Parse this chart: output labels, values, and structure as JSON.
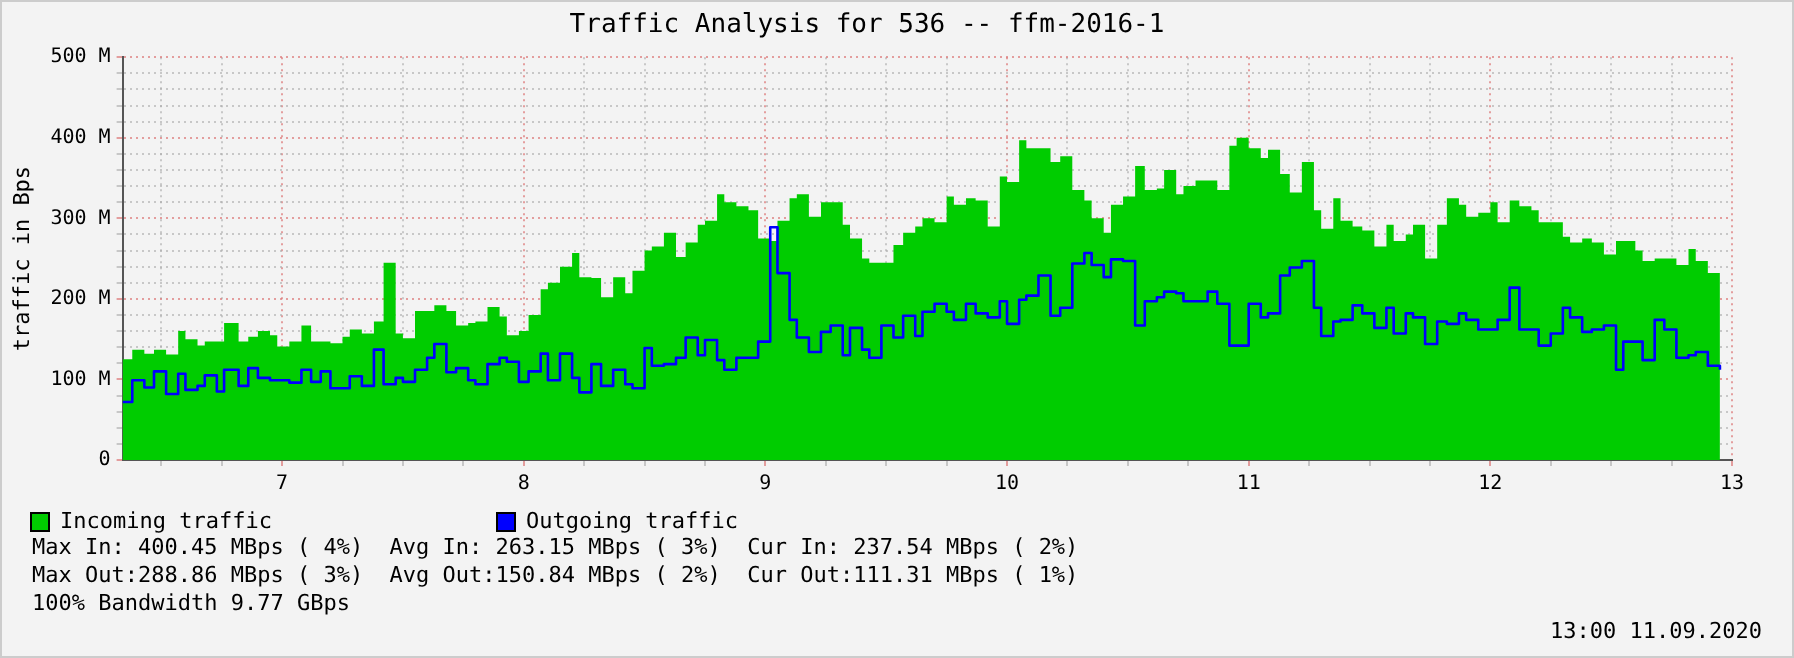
{
  "chart_data": {
    "type": "step",
    "title": "Traffic Analysis for 536 -- ffm-2016-1",
    "ylabel": "traffic in Bps",
    "grid": true,
    "legend": "bottom",
    "xlim": [
      6.34,
      13
    ],
    "xticks": [
      {
        "value": 6.5,
        "label": null
      },
      {
        "value": 6.75,
        "label": null
      },
      7,
      {
        "value": 7.25,
        "label": null
      },
      {
        "value": 7.5,
        "label": null
      },
      {
        "value": 7.75,
        "label": null
      },
      8,
      {
        "value": 8.25,
        "label": null
      },
      {
        "value": 8.5,
        "label": null
      },
      {
        "value": 8.75,
        "label": null
      },
      9,
      {
        "value": 9.25,
        "label": null
      },
      {
        "value": 9.5,
        "label": null
      },
      {
        "value": 9.75,
        "label": null
      },
      10,
      {
        "value": 10.25,
        "label": null
      },
      {
        "value": 10.5,
        "label": null
      },
      {
        "value": 10.75,
        "label": null
      },
      11,
      {
        "value": 11.25,
        "label": null
      },
      {
        "value": 11.5,
        "label": null
      },
      {
        "value": 11.75,
        "label": null
      },
      12,
      {
        "value": 12.25,
        "label": null
      },
      {
        "value": 12.5,
        "label": null
      },
      {
        "value": 12.75,
        "label": null
      },
      13
    ],
    "ylim": [
      0,
      500
    ],
    "yticks": [
      0,
      {
        "value": 20,
        "label": null
      },
      {
        "value": 40,
        "label": null
      },
      {
        "value": 60,
        "label": null
      },
      {
        "value": 80,
        "label": null
      },
      {
        "value": 100,
        "label": "100 M"
      },
      {
        "value": 120,
        "label": null
      },
      {
        "value": 140,
        "label": null
      },
      {
        "value": 160,
        "label": null
      },
      {
        "value": 180,
        "label": null
      },
      {
        "value": 200,
        "label": "200 M"
      },
      {
        "value": 220,
        "label": null
      },
      {
        "value": 240,
        "label": null
      },
      {
        "value": 260,
        "label": null
      },
      {
        "value": 280,
        "label": null
      },
      {
        "value": 300,
        "label": "300 M"
      },
      {
        "value": 320,
        "label": null
      },
      {
        "value": 340,
        "label": null
      },
      {
        "value": 360,
        "label": null
      },
      {
        "value": 380,
        "label": null
      },
      {
        "value": 400,
        "label": "400 M"
      },
      {
        "value": 420,
        "label": null
      },
      {
        "value": 440,
        "label": null
      },
      {
        "value": 460,
        "label": null
      },
      {
        "value": 480,
        "label": null
      },
      {
        "value": 500,
        "label": "500 M"
      }
    ],
    "x": [
      6.34,
      6.38,
      6.43,
      6.47,
      6.52,
      6.57,
      6.6,
      6.65,
      6.68,
      6.73,
      6.76,
      6.82,
      6.86,
      6.9,
      6.95,
      6.98,
      7.03,
      7.08,
      7.12,
      7.16,
      7.2,
      7.25,
      7.28,
      7.33,
      7.38,
      7.42,
      7.47,
      7.5,
      7.55,
      7.6,
      7.63,
      7.68,
      7.72,
      7.77,
      7.8,
      7.85,
      7.9,
      7.93,
      7.98,
      8.02,
      8.07,
      8.1,
      8.15,
      8.2,
      8.23,
      8.28,
      8.32,
      8.37,
      8.42,
      8.45,
      8.5,
      8.53,
      8.58,
      8.63,
      8.67,
      8.72,
      8.75,
      8.8,
      8.83,
      8.88,
      8.93,
      8.97,
      9.02,
      9.05,
      9.1,
      9.13,
      9.18,
      9.23,
      9.27,
      9.32,
      9.35,
      9.4,
      9.43,
      9.48,
      9.53,
      9.57,
      9.62,
      9.65,
      9.7,
      9.75,
      9.78,
      9.83,
      9.87,
      9.92,
      9.97,
      10.0,
      10.05,
      10.08,
      10.13,
      10.18,
      10.22,
      10.27,
      10.32,
      10.35,
      10.4,
      10.43,
      10.48,
      10.53,
      10.57,
      10.62,
      10.65,
      10.7,
      10.73,
      10.78,
      10.83,
      10.87,
      10.92,
      10.95,
      11.0,
      11.05,
      11.08,
      11.13,
      11.17,
      11.22,
      11.27,
      11.3,
      11.35,
      11.38,
      11.43,
      11.47,
      11.52,
      11.57,
      11.6,
      11.65,
      11.68,
      11.73,
      11.78,
      11.82,
      11.87,
      11.9,
      11.95,
      12.0,
      12.03,
      12.08,
      12.12,
      12.17,
      12.2,
      12.25,
      12.3,
      12.33,
      12.38,
      12.42,
      12.47,
      12.52,
      12.55,
      12.6,
      12.63,
      12.68,
      12.72,
      12.77,
      12.82,
      12.85,
      12.9,
      12.95
    ],
    "series": [
      {
        "name": "Incoming traffic",
        "type": "area",
        "color": "#00cc00",
        "values": [
          125,
          137,
          132,
          137,
          131,
          160,
          150,
          142,
          147,
          147,
          170,
          147,
          153,
          160,
          155,
          141,
          147,
          167,
          147,
          147,
          145,
          153,
          162,
          157,
          172,
          245,
          157,
          151,
          185,
          185,
          192,
          185,
          167,
          170,
          172,
          190,
          178,
          155,
          160,
          180,
          212,
          220,
          240,
          257,
          227,
          226,
          202,
          227,
          207,
          235,
          260,
          265,
          282,
          252,
          270,
          292,
          297,
          330,
          320,
          315,
          310,
          275,
          272,
          297,
          325,
          330,
          302,
          320,
          320,
          292,
          275,
          250,
          245,
          245,
          267,
          282,
          290,
          300,
          295,
          327,
          317,
          325,
          322,
          290,
          352,
          345,
          397,
          387,
          387,
          370,
          377,
          335,
          322,
          300,
          282,
          317,
          327,
          365,
          335,
          337,
          360,
          330,
          340,
          347,
          347,
          335,
          390,
          400,
          387,
          375,
          385,
          355,
          332,
          370,
          310,
          287,
          325,
          297,
          290,
          285,
          265,
          292,
          272,
          280,
          292,
          250,
          292,
          325,
          317,
          302,
          307,
          320,
          295,
          322,
          315,
          310,
          295,
          295,
          277,
          270,
          275,
          270,
          255,
          272,
          272,
          260,
          247,
          250,
          250,
          242,
          262,
          247,
          232,
          237
        ]
      },
      {
        "name": "Outgoing traffic",
        "type": "step",
        "color": "#0000ff",
        "values": [
          72,
          99,
          90,
          110,
          82,
          107,
          87,
          92,
          105,
          85,
          112,
          92,
          114,
          102,
          99,
          99,
          96,
          112,
          97,
          110,
          89,
          89,
          104,
          92,
          137,
          94,
          102,
          97,
          112,
          127,
          144,
          109,
          114,
          99,
          94,
          119,
          127,
          122,
          97,
          110,
          132,
          99,
          132,
          102,
          84,
          119,
          92,
          112,
          94,
          89,
          139,
          117,
          119,
          127,
          152,
          130,
          149,
          124,
          112,
          127,
          127,
          147,
          289,
          232,
          174,
          152,
          134,
          159,
          167,
          130,
          164,
          137,
          127,
          167,
          152,
          179,
          154,
          184,
          194,
          184,
          174,
          194,
          182,
          177,
          197,
          169,
          199,
          204,
          229,
          179,
          189,
          244,
          257,
          242,
          227,
          249,
          247,
          167,
          197,
          202,
          209,
          207,
          197,
          197,
          209,
          194,
          142,
          142,
          194,
          177,
          182,
          229,
          239,
          247,
          189,
          154,
          172,
          174,
          192,
          182,
          164,
          189,
          157,
          182,
          177,
          144,
          172,
          169,
          182,
          174,
          162,
          162,
          174,
          214,
          162,
          162,
          142,
          157,
          189,
          177,
          159,
          162,
          167,
          112,
          147,
          147,
          124,
          174,
          162,
          127,
          130,
          134,
          117,
          112
        ]
      }
    ],
    "annotations": [
      "Max In: 400.45 MBps ( 4%)  Avg In: 263.15 MBps ( 3%)  Cur In: 237.54 MBps ( 2%)",
      "Max Out:288.86 MBps ( 3%)  Avg Out:150.84 MBps ( 2%)  Cur Out:111.31 MBps ( 1%)",
      "100% Bandwidth 9.77 GBps",
      "13:00 11.09.2020"
    ]
  }
}
